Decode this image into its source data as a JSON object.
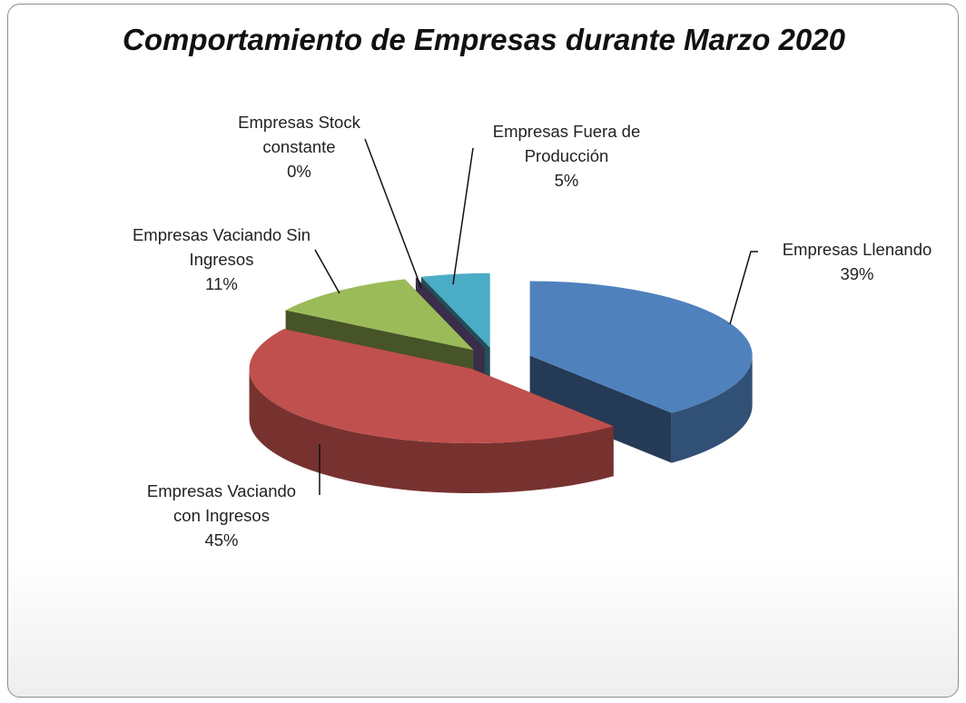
{
  "chart_data": {
    "type": "pie",
    "title": "Comportamiento de Empresas durante Marzo 2020",
    "categories": [
      "Empresas Llenando",
      "Empresas Vaciando con Ingresos",
      "Empresas Vaciando Sin Ingresos",
      "Empresas Stock constante",
      "Empresas Fuera de Producción"
    ],
    "values": [
      39,
      45,
      11,
      0,
      5
    ],
    "value_labels": [
      "39%",
      "45%",
      "11%",
      "0%",
      "5%"
    ],
    "colors": [
      "#4f81bd",
      "#c0504d",
      "#9bbb59",
      "#8064a2",
      "#4bacc6"
    ]
  }
}
